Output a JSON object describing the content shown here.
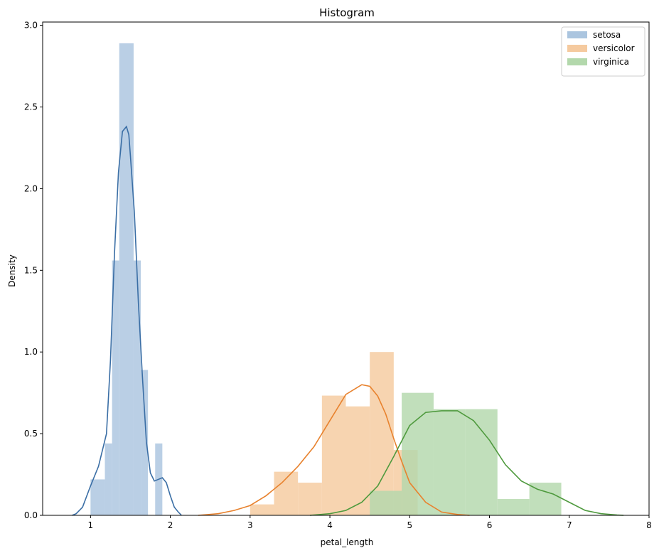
{
  "chart_data": {
    "type": "bar",
    "title": "Histogram",
    "xlabel": "petal_length",
    "ylabel": "Density",
    "xlim": [
      0.4,
      8.0
    ],
    "ylim": [
      0.0,
      3.02
    ],
    "xticks": [
      1,
      2,
      3,
      4,
      5,
      6,
      7,
      8
    ],
    "xtick_labels": [
      "1",
      "2",
      "3",
      "4",
      "5",
      "6",
      "7",
      "8"
    ],
    "yticks": [
      0.0,
      0.5,
      1.0,
      1.5,
      2.0,
      2.5,
      3.0
    ],
    "ytick_labels": [
      "0.0",
      "0.5",
      "1.0",
      "1.5",
      "2.0",
      "2.5",
      "3.0"
    ],
    "grid": false,
    "legend_position": "top-right",
    "series": [
      {
        "name": "setosa",
        "color": "#3a6ea5",
        "bar_color": "#abc5df",
        "bins": [
          1.0,
          1.18,
          1.27,
          1.36,
          1.54,
          1.63,
          1.72,
          1.81,
          1.9
        ],
        "heights": [
          0.22,
          0.44,
          1.56,
          2.89,
          1.56,
          0.89,
          0.0,
          0.44
        ],
        "kde_x": [
          0.77,
          0.82,
          0.9,
          1.0,
          1.1,
          1.2,
          1.25,
          1.3,
          1.35,
          1.4,
          1.45,
          1.48,
          1.5,
          1.55,
          1.6,
          1.65,
          1.7,
          1.75,
          1.8,
          1.85,
          1.9,
          1.95,
          2.0,
          2.05,
          2.1,
          2.14
        ],
        "kde_y": [
          0.0,
          0.01,
          0.05,
          0.18,
          0.3,
          0.5,
          0.95,
          1.6,
          2.1,
          2.35,
          2.38,
          2.33,
          2.2,
          1.85,
          1.3,
          0.85,
          0.45,
          0.26,
          0.21,
          0.22,
          0.23,
          0.2,
          0.12,
          0.05,
          0.02,
          0.0
        ]
      },
      {
        "name": "versicolor",
        "color": "#e8822e",
        "bar_color": "#f5ca9f",
        "bins": [
          3.0,
          3.3,
          3.6,
          3.9,
          4.2,
          4.5,
          4.8,
          5.1
        ],
        "heights": [
          0.067,
          0.267,
          0.2,
          0.733,
          0.667,
          1.0,
          0.4
        ],
        "kde_x": [
          2.35,
          2.6,
          2.8,
          3.0,
          3.2,
          3.4,
          3.6,
          3.8,
          4.0,
          4.2,
          4.4,
          4.5,
          4.6,
          4.7,
          4.8,
          4.9,
          5.0,
          5.2,
          5.4,
          5.6,
          5.75
        ],
        "kde_y": [
          0.0,
          0.01,
          0.03,
          0.06,
          0.12,
          0.2,
          0.3,
          0.42,
          0.58,
          0.74,
          0.8,
          0.79,
          0.73,
          0.62,
          0.47,
          0.33,
          0.2,
          0.08,
          0.02,
          0.005,
          0.0
        ]
      },
      {
        "name": "virginica",
        "color": "#4f9a3e",
        "bar_color": "#b3d8ac",
        "bins": [
          4.5,
          4.9,
          5.3,
          5.7,
          6.1,
          6.5,
          6.9
        ],
        "heights": [
          0.15,
          0.75,
          0.65,
          0.65,
          0.1,
          0.2
        ],
        "kde_x": [
          3.75,
          4.0,
          4.2,
          4.4,
          4.6,
          4.8,
          5.0,
          5.2,
          5.4,
          5.6,
          5.8,
          6.0,
          6.2,
          6.4,
          6.6,
          6.8,
          7.0,
          7.2,
          7.4,
          7.6,
          7.68
        ],
        "kde_y": [
          0.0,
          0.01,
          0.03,
          0.08,
          0.18,
          0.36,
          0.55,
          0.63,
          0.64,
          0.64,
          0.58,
          0.46,
          0.31,
          0.21,
          0.16,
          0.13,
          0.08,
          0.03,
          0.01,
          0.002,
          0.0
        ]
      }
    ]
  }
}
